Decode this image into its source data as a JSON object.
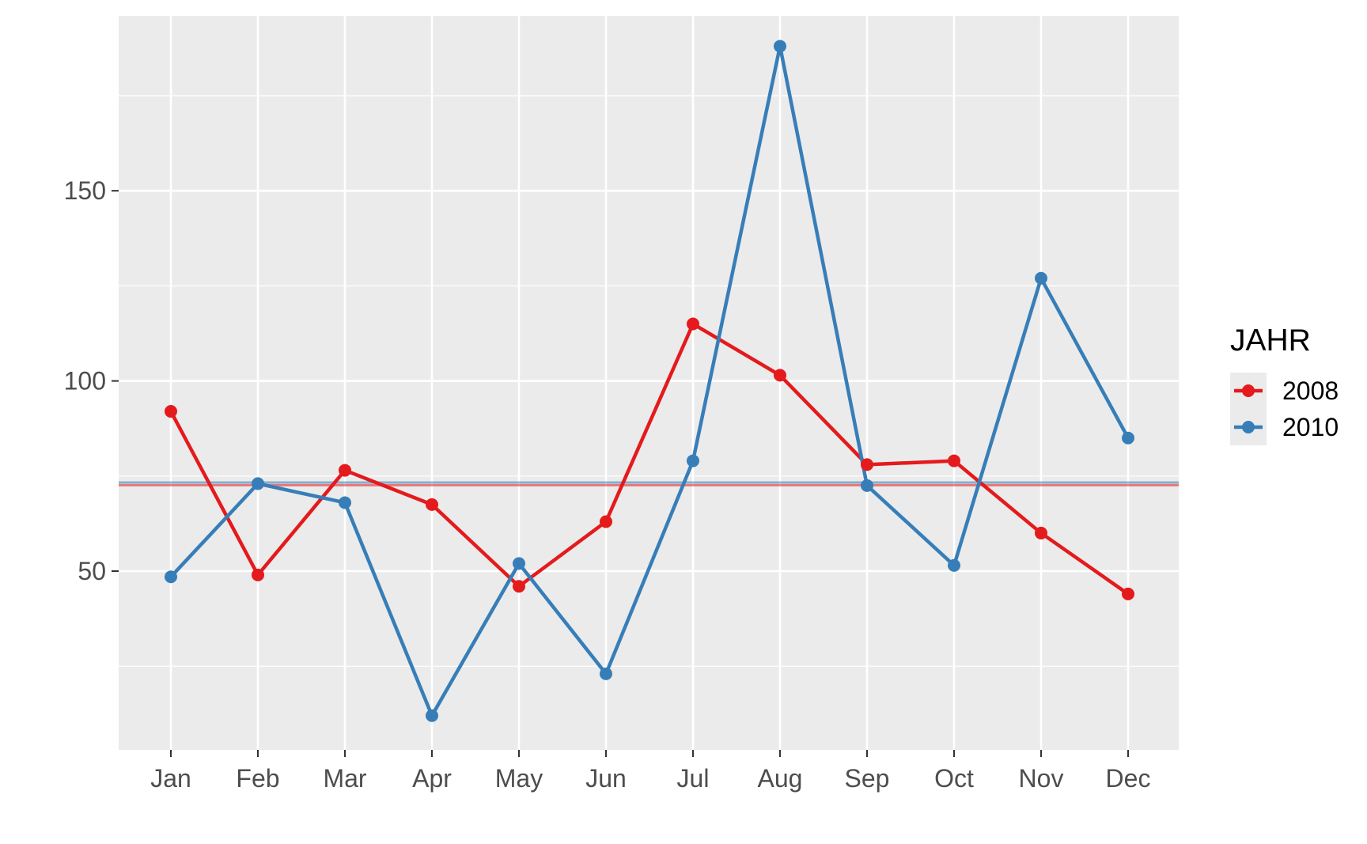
{
  "chart_data": {
    "type": "line",
    "title": "",
    "xlabel": "",
    "ylabel": "",
    "categories": [
      "Jan",
      "Feb",
      "Mar",
      "Apr",
      "May",
      "Jun",
      "Jul",
      "Aug",
      "Sep",
      "Oct",
      "Nov",
      "Dec"
    ],
    "y_ticks": [
      50,
      100,
      150
    ],
    "y_tick_labels": [
      "50",
      "100",
      "150"
    ],
    "ylim": [
      3,
      196
    ],
    "grid": true,
    "legend": {
      "title": "JAHR",
      "placement": "right"
    },
    "series": [
      {
        "name": "2008",
        "color": "#e41a1c",
        "values": [
          92,
          49,
          76.5,
          67.5,
          46,
          63,
          115,
          101.5,
          78,
          79,
          60,
          44
        ],
        "mean_line": 72.6
      },
      {
        "name": "2010",
        "color": "#377eb8",
        "values": [
          48.5,
          73,
          68,
          12,
          52,
          23,
          79,
          188,
          72.5,
          51.5,
          127,
          85
        ],
        "mean_line": 73.3
      }
    ]
  },
  "colors": {
    "panel_background": "#ebebeb",
    "grid_major": "#ffffff",
    "tick_text": "#4d4d4d",
    "tick_mark": "#333333"
  }
}
